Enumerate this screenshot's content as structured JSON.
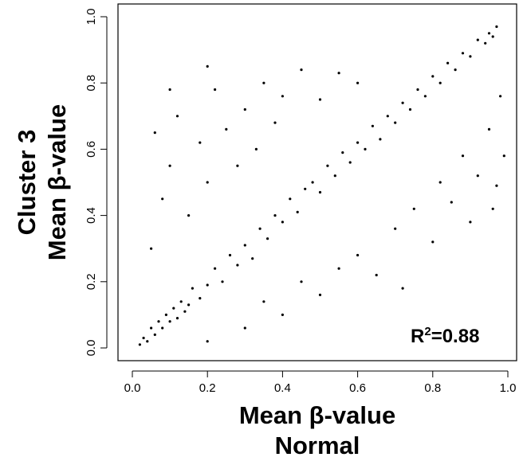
{
  "chart_data": {
    "type": "scatter",
    "title": "",
    "xlabel": [
      "Mean β-value",
      "Normal"
    ],
    "ylabel": [
      "Cluster 3",
      "Mean β-value"
    ],
    "xlim": [
      0.0,
      1.0
    ],
    "ylim": [
      0.0,
      1.0
    ],
    "x_ticks": [
      "0.0",
      "0.2",
      "0.4",
      "0.6",
      "0.8",
      "1.0"
    ],
    "y_ticks": [
      "0.0",
      "0.2",
      "0.4",
      "0.6",
      "0.8",
      "1.0"
    ],
    "grid": false,
    "point_color": "#000000",
    "annotation": {
      "base": "R",
      "superscript": "2",
      "value": "=0.88",
      "position": "bottom-right"
    },
    "points": [
      [
        0.02,
        0.01
      ],
      [
        0.03,
        0.03
      ],
      [
        0.04,
        0.02
      ],
      [
        0.05,
        0.06
      ],
      [
        0.06,
        0.04
      ],
      [
        0.07,
        0.08
      ],
      [
        0.08,
        0.06
      ],
      [
        0.09,
        0.1
      ],
      [
        0.1,
        0.08
      ],
      [
        0.11,
        0.12
      ],
      [
        0.12,
        0.09
      ],
      [
        0.13,
        0.14
      ],
      [
        0.14,
        0.11
      ],
      [
        0.15,
        0.13
      ],
      [
        0.16,
        0.18
      ],
      [
        0.18,
        0.15
      ],
      [
        0.2,
        0.19
      ],
      [
        0.22,
        0.24
      ],
      [
        0.24,
        0.2
      ],
      [
        0.26,
        0.28
      ],
      [
        0.28,
        0.25
      ],
      [
        0.3,
        0.31
      ],
      [
        0.32,
        0.27
      ],
      [
        0.34,
        0.36
      ],
      [
        0.36,
        0.33
      ],
      [
        0.38,
        0.4
      ],
      [
        0.4,
        0.38
      ],
      [
        0.42,
        0.45
      ],
      [
        0.44,
        0.41
      ],
      [
        0.46,
        0.48
      ],
      [
        0.48,
        0.5
      ],
      [
        0.5,
        0.47
      ],
      [
        0.52,
        0.55
      ],
      [
        0.54,
        0.52
      ],
      [
        0.56,
        0.59
      ],
      [
        0.58,
        0.56
      ],
      [
        0.6,
        0.62
      ],
      [
        0.62,
        0.6
      ],
      [
        0.64,
        0.67
      ],
      [
        0.66,
        0.63
      ],
      [
        0.68,
        0.7
      ],
      [
        0.7,
        0.68
      ],
      [
        0.72,
        0.74
      ],
      [
        0.74,
        0.72
      ],
      [
        0.76,
        0.78
      ],
      [
        0.78,
        0.76
      ],
      [
        0.8,
        0.82
      ],
      [
        0.82,
        0.8
      ],
      [
        0.84,
        0.86
      ],
      [
        0.86,
        0.84
      ],
      [
        0.88,
        0.89
      ],
      [
        0.9,
        0.88
      ],
      [
        0.92,
        0.93
      ],
      [
        0.94,
        0.92
      ],
      [
        0.95,
        0.95
      ],
      [
        0.96,
        0.94
      ],
      [
        0.97,
        0.97
      ],
      [
        0.05,
        0.3
      ],
      [
        0.08,
        0.45
      ],
      [
        0.06,
        0.65
      ],
      [
        0.1,
        0.55
      ],
      [
        0.12,
        0.7
      ],
      [
        0.15,
        0.4
      ],
      [
        0.18,
        0.62
      ],
      [
        0.2,
        0.5
      ],
      [
        0.22,
        0.78
      ],
      [
        0.25,
        0.66
      ],
      [
        0.28,
        0.55
      ],
      [
        0.3,
        0.72
      ],
      [
        0.33,
        0.6
      ],
      [
        0.35,
        0.8
      ],
      [
        0.38,
        0.68
      ],
      [
        0.4,
        0.76
      ],
      [
        0.45,
        0.84
      ],
      [
        0.5,
        0.75
      ],
      [
        0.55,
        0.83
      ],
      [
        0.6,
        0.8
      ],
      [
        0.1,
        0.78
      ],
      [
        0.2,
        0.85
      ],
      [
        0.2,
        0.02
      ],
      [
        0.3,
        0.06
      ],
      [
        0.35,
        0.14
      ],
      [
        0.4,
        0.1
      ],
      [
        0.45,
        0.2
      ],
      [
        0.5,
        0.16
      ],
      [
        0.55,
        0.24
      ],
      [
        0.6,
        0.28
      ],
      [
        0.65,
        0.22
      ],
      [
        0.7,
        0.36
      ],
      [
        0.72,
        0.18
      ],
      [
        0.75,
        0.42
      ],
      [
        0.8,
        0.32
      ],
      [
        0.82,
        0.5
      ],
      [
        0.85,
        0.44
      ],
      [
        0.88,
        0.58
      ],
      [
        0.9,
        0.38
      ],
      [
        0.92,
        0.52
      ],
      [
        0.95,
        0.66
      ],
      [
        0.98,
        0.76
      ],
      [
        0.97,
        0.49
      ],
      [
        0.99,
        0.58
      ],
      [
        0.96,
        0.42
      ]
    ]
  }
}
